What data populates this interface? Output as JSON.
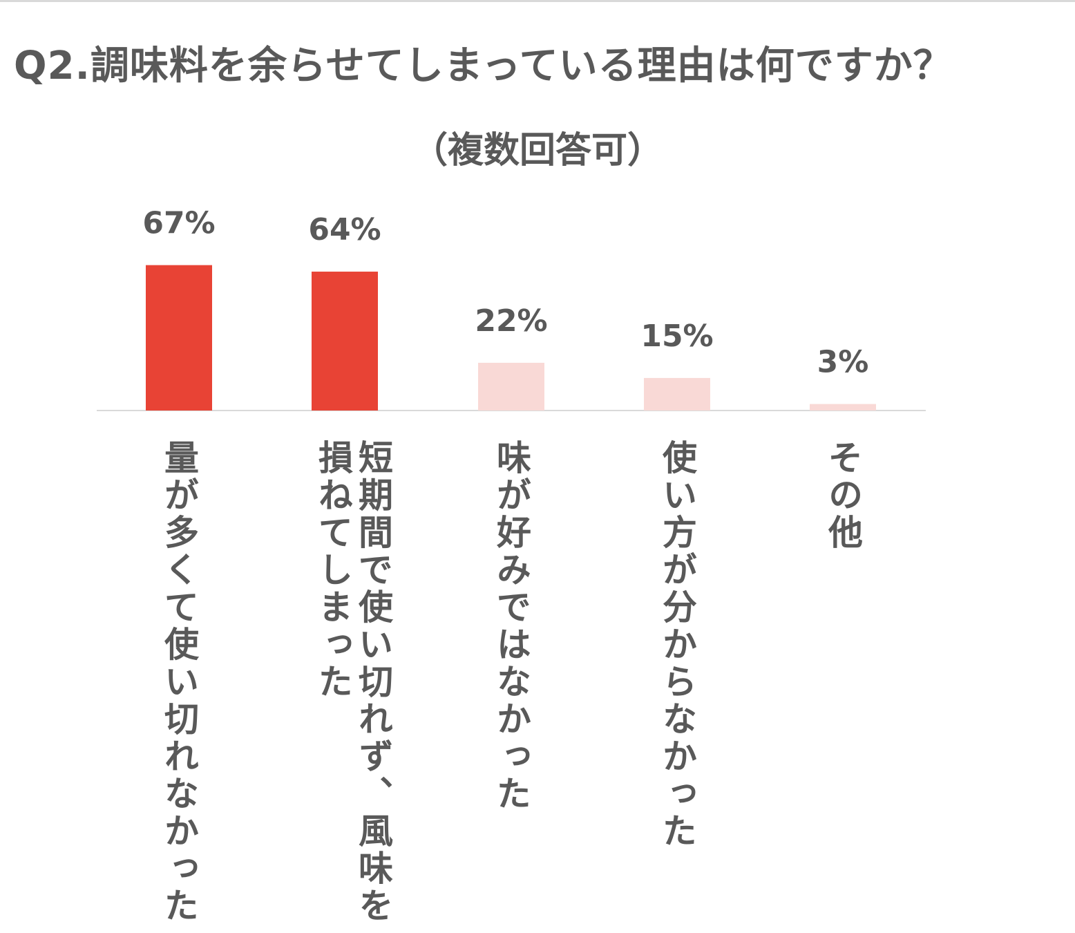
{
  "title": "Q2.調味料を余らせてしまっている理由は何ですか？",
  "subtitle": "（複数回答可）",
  "chart_data": {
    "type": "bar",
    "categories": [
      "量が多くて使い切れなかった",
      "短期間で使い切れず、風味を損ねてしまった",
      "味が好みではなかった",
      "使い方が分からなかった",
      "その他"
    ],
    "category_lines": [
      [
        "量が多くて使い切れなかった"
      ],
      [
        "短期間で使い切れず、風味を",
        "損ねてしまった"
      ],
      [
        "味が好みではなかった"
      ],
      [
        "使い方が分からなかった"
      ],
      [
        "その他"
      ]
    ],
    "values": [
      67,
      64,
      22,
      15,
      3
    ],
    "value_labels": [
      "67%",
      "64%",
      "22%",
      "15%",
      "3%"
    ],
    "unit": "%",
    "colors": [
      "#e84335",
      "#e84335",
      "#f9d9d6",
      "#f9d9d6",
      "#f9d9d6"
    ],
    "ylim": [
      0,
      100
    ],
    "grid": false,
    "legend": "none"
  }
}
